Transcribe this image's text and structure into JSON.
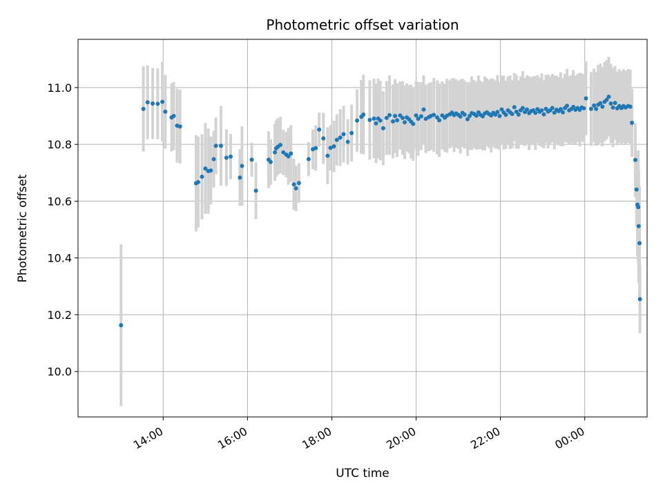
{
  "chart_data": {
    "type": "scatter",
    "title": "Photometric offset variation",
    "xlabel": "UTC time",
    "ylabel": "Photometric offset",
    "x_unit": "hours UTC since 00:00 of first day",
    "xlim": [
      11.98,
      25.48
    ],
    "ylim": [
      9.84,
      11.17
    ],
    "x_ticks": [
      {
        "value": 14,
        "label": "14:00"
      },
      {
        "value": 16,
        "label": "16:00"
      },
      {
        "value": 18,
        "label": "18:00"
      },
      {
        "value": 20,
        "label": "20:00"
      },
      {
        "value": 22,
        "label": "22:00"
      },
      {
        "value": 24,
        "label": "00:00"
      }
    ],
    "y_ticks": [
      {
        "value": 10.0,
        "label": "10.0"
      },
      {
        "value": 10.2,
        "label": "10.2"
      },
      {
        "value": 10.4,
        "label": "10.4"
      },
      {
        "value": 10.6,
        "label": "10.6"
      },
      {
        "value": 10.8,
        "label": "10.8"
      },
      {
        "value": 11.0,
        "label": "11.0"
      }
    ],
    "grid": true,
    "colors": {
      "points": "#1f77b4",
      "errorbars": "#d3d3d3"
    },
    "series": [
      {
        "name": "",
        "points": [
          [
            13.0,
            10.163,
            0.285
          ],
          [
            13.53,
            10.925,
            0.15
          ],
          [
            13.63,
            10.948,
            0.13
          ],
          [
            13.75,
            10.944,
            0.125
          ],
          [
            13.87,
            10.943,
            0.125
          ],
          [
            13.98,
            10.95,
            0.14
          ],
          [
            14.05,
            10.915,
            0.13
          ],
          [
            14.2,
            10.895,
            0.12
          ],
          [
            14.25,
            10.9,
            0.12
          ],
          [
            14.33,
            10.866,
            0.13
          ],
          [
            14.4,
            10.863,
            0.13
          ],
          [
            14.78,
            10.663,
            0.17
          ],
          [
            14.83,
            10.667,
            0.16
          ],
          [
            14.92,
            10.686,
            0.15
          ],
          [
            15.0,
            10.715,
            0.16
          ],
          [
            15.07,
            10.706,
            0.15
          ],
          [
            15.13,
            10.708,
            0.12
          ],
          [
            15.2,
            10.748,
            0.1
          ],
          [
            15.25,
            10.795,
            0.1
          ],
          [
            15.37,
            10.795,
            0.14
          ],
          [
            15.5,
            10.753,
            0.1
          ],
          [
            15.6,
            10.757,
            0.08
          ],
          [
            15.82,
            10.683,
            0.1
          ],
          [
            15.87,
            10.724,
            0.14
          ],
          [
            16.1,
            10.746,
            0.06
          ],
          [
            16.2,
            10.637,
            0.1
          ],
          [
            16.5,
            10.746,
            0.1
          ],
          [
            16.55,
            10.738,
            0.08
          ],
          [
            16.65,
            10.772,
            0.1
          ],
          [
            16.68,
            10.786,
            0.1
          ],
          [
            16.72,
            10.792,
            0.1
          ],
          [
            16.78,
            10.798,
            0.1
          ],
          [
            16.85,
            10.772,
            0.08
          ],
          [
            16.92,
            10.764,
            0.08
          ],
          [
            16.97,
            10.758,
            0.1
          ],
          [
            17.03,
            10.768,
            0.1
          ],
          [
            17.1,
            10.659,
            0.09
          ],
          [
            17.15,
            10.645,
            0.08
          ],
          [
            17.22,
            10.664,
            0.07
          ],
          [
            17.45,
            10.748,
            0.06
          ],
          [
            17.55,
            10.783,
            0.07
          ],
          [
            17.62,
            10.787,
            0.08
          ],
          [
            17.7,
            10.852,
            0.06
          ],
          [
            17.8,
            10.821,
            0.09
          ],
          [
            17.9,
            10.76,
            0.1
          ],
          [
            17.97,
            10.788,
            0.08
          ],
          [
            18.05,
            10.793,
            0.09
          ],
          [
            18.12,
            10.816,
            0.09
          ],
          [
            18.2,
            10.824,
            0.1
          ],
          [
            18.28,
            10.836,
            0.1
          ],
          [
            18.38,
            10.809,
            0.08
          ],
          [
            18.47,
            10.84,
            0.1
          ],
          [
            18.6,
            10.884,
            0.11
          ],
          [
            18.7,
            10.897,
            0.13
          ],
          [
            18.75,
            10.905,
            0.14
          ],
          [
            18.9,
            10.886,
            0.14
          ],
          [
            19.0,
            10.891,
            0.14
          ],
          [
            19.05,
            10.874,
            0.14
          ],
          [
            19.1,
            10.891,
            0.14
          ],
          [
            19.15,
            10.884,
            0.14
          ],
          [
            19.22,
            10.857,
            0.13
          ],
          [
            19.3,
            10.893,
            0.13
          ],
          [
            19.37,
            10.903,
            0.14
          ],
          [
            19.45,
            10.881,
            0.13
          ],
          [
            19.5,
            10.9,
            0.13
          ],
          [
            19.55,
            10.885,
            0.13
          ],
          [
            19.62,
            10.902,
            0.12
          ],
          [
            19.68,
            10.893,
            0.13
          ],
          [
            19.73,
            10.878,
            0.13
          ],
          [
            19.78,
            10.895,
            0.12
          ],
          [
            19.83,
            10.889,
            0.12
          ],
          [
            19.88,
            10.88,
            0.13
          ],
          [
            19.93,
            10.872,
            0.13
          ],
          [
            20.0,
            10.902,
            0.12
          ],
          [
            20.05,
            10.89,
            0.13
          ],
          [
            20.12,
            10.899,
            0.12
          ],
          [
            20.18,
            10.923,
            0.12
          ],
          [
            20.23,
            10.89,
            0.12
          ],
          [
            20.3,
            10.896,
            0.12
          ],
          [
            20.35,
            10.9,
            0.12
          ],
          [
            20.42,
            10.904,
            0.13
          ],
          [
            20.5,
            10.895,
            0.13
          ],
          [
            20.55,
            10.885,
            0.13
          ],
          [
            20.62,
            10.902,
            0.12
          ],
          [
            20.68,
            10.894,
            0.12
          ],
          [
            20.73,
            10.901,
            0.13
          ],
          [
            20.8,
            10.906,
            0.12
          ],
          [
            20.85,
            10.912,
            0.12
          ],
          [
            20.9,
            10.903,
            0.13
          ],
          [
            20.95,
            10.909,
            0.12
          ],
          [
            21.0,
            10.904,
            0.12
          ],
          [
            21.05,
            10.898,
            0.13
          ],
          [
            21.1,
            10.911,
            0.12
          ],
          [
            21.15,
            10.905,
            0.12
          ],
          [
            21.22,
            10.889,
            0.13
          ],
          [
            21.27,
            10.9,
            0.12
          ],
          [
            21.32,
            10.91,
            0.13
          ],
          [
            21.38,
            10.907,
            0.12
          ],
          [
            21.43,
            10.901,
            0.12
          ],
          [
            21.48,
            10.913,
            0.13
          ],
          [
            21.53,
            10.904,
            0.12
          ],
          [
            21.58,
            10.899,
            0.12
          ],
          [
            21.63,
            10.909,
            0.13
          ],
          [
            21.68,
            10.913,
            0.12
          ],
          [
            21.73,
            10.907,
            0.12
          ],
          [
            21.78,
            10.902,
            0.13
          ],
          [
            21.83,
            10.911,
            0.12
          ],
          [
            21.88,
            10.905,
            0.12
          ],
          [
            21.93,
            10.914,
            0.13
          ],
          [
            21.98,
            10.9,
            0.12
          ],
          [
            22.03,
            10.923,
            0.12
          ],
          [
            22.08,
            10.912,
            0.13
          ],
          [
            22.13,
            10.904,
            0.12
          ],
          [
            22.18,
            10.92,
            0.12
          ],
          [
            22.23,
            10.913,
            0.13
          ],
          [
            22.28,
            10.907,
            0.12
          ],
          [
            22.33,
            10.931,
            0.12
          ],
          [
            22.38,
            10.915,
            0.13
          ],
          [
            22.43,
            10.905,
            0.12
          ],
          [
            22.48,
            10.92,
            0.12
          ],
          [
            22.53,
            10.928,
            0.13
          ],
          [
            22.58,
            10.914,
            0.12
          ],
          [
            22.63,
            10.923,
            0.12
          ],
          [
            22.68,
            10.91,
            0.13
          ],
          [
            22.73,
            10.917,
            0.12
          ],
          [
            22.78,
            10.92,
            0.12
          ],
          [
            22.83,
            10.911,
            0.13
          ],
          [
            22.88,
            10.924,
            0.12
          ],
          [
            22.93,
            10.915,
            0.12
          ],
          [
            22.98,
            10.92,
            0.13
          ],
          [
            23.03,
            10.906,
            0.12
          ],
          [
            23.08,
            10.925,
            0.12
          ],
          [
            23.13,
            10.916,
            0.13
          ],
          [
            23.18,
            10.92,
            0.12
          ],
          [
            23.23,
            10.928,
            0.12
          ],
          [
            23.28,
            10.912,
            0.13
          ],
          [
            23.33,
            10.922,
            0.12
          ],
          [
            23.38,
            10.917,
            0.12
          ],
          [
            23.43,
            10.924,
            0.13
          ],
          [
            23.48,
            10.913,
            0.12
          ],
          [
            23.53,
            10.928,
            0.12
          ],
          [
            23.58,
            10.936,
            0.13
          ],
          [
            23.63,
            10.92,
            0.12
          ],
          [
            23.68,
            10.924,
            0.12
          ],
          [
            23.73,
            10.932,
            0.13
          ],
          [
            23.78,
            10.922,
            0.12
          ],
          [
            23.83,
            10.928,
            0.12
          ],
          [
            23.88,
            10.922,
            0.13
          ],
          [
            23.93,
            10.93,
            0.12
          ],
          [
            23.98,
            10.927,
            0.12
          ],
          [
            24.03,
            10.962,
            0.13
          ],
          [
            24.15,
            10.925,
            0.13
          ],
          [
            24.22,
            10.937,
            0.13
          ],
          [
            24.27,
            10.925,
            0.13
          ],
          [
            24.32,
            10.94,
            0.14
          ],
          [
            24.37,
            10.945,
            0.14
          ],
          [
            24.42,
            10.933,
            0.14
          ],
          [
            24.47,
            10.95,
            0.14
          ],
          [
            24.52,
            10.957,
            0.14
          ],
          [
            24.57,
            10.968,
            0.14
          ],
          [
            24.62,
            10.944,
            0.14
          ],
          [
            24.67,
            10.93,
            0.14
          ],
          [
            24.72,
            10.946,
            0.13
          ],
          [
            24.77,
            10.927,
            0.13
          ],
          [
            24.82,
            10.935,
            0.13
          ],
          [
            24.87,
            10.928,
            0.13
          ],
          [
            24.92,
            10.935,
            0.13
          ],
          [
            24.97,
            10.93,
            0.13
          ],
          [
            25.03,
            10.935,
            0.13
          ],
          [
            25.08,
            10.933,
            0.13
          ],
          [
            25.12,
            10.876,
            0.12
          ],
          [
            25.2,
            10.745,
            0.13
          ],
          [
            25.23,
            10.641,
            0.13
          ],
          [
            25.25,
            10.588,
            0.18
          ],
          [
            25.27,
            10.579,
            0.2
          ],
          [
            25.28,
            10.512,
            0.2
          ],
          [
            25.3,
            10.452,
            0.2
          ],
          [
            25.31,
            10.255,
            0.12
          ]
        ]
      }
    ]
  }
}
